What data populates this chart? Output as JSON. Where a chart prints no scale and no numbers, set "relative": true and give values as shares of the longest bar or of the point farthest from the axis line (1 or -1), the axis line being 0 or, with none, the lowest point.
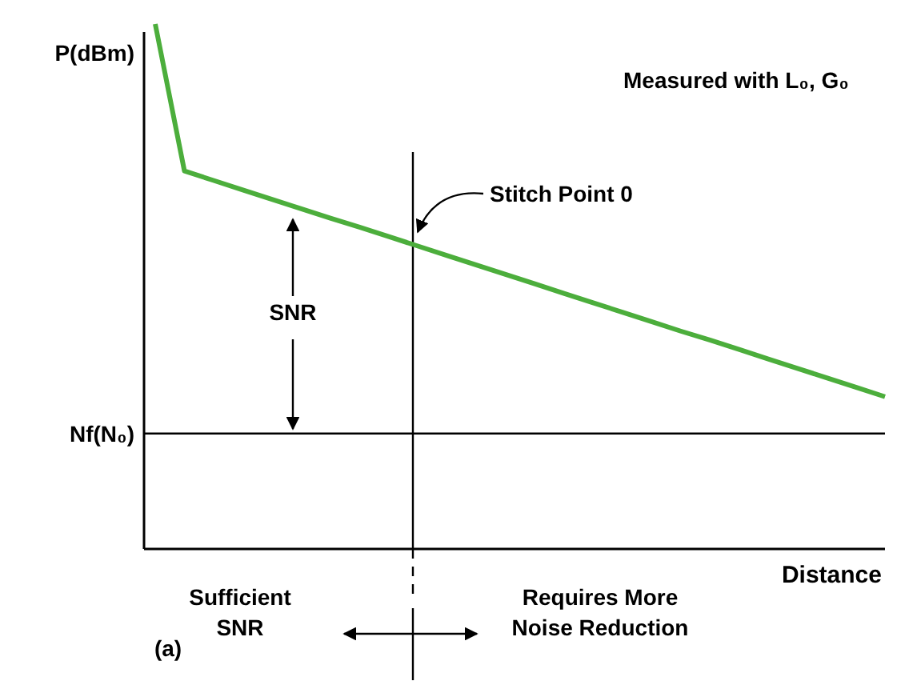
{
  "chart_data": {
    "type": "line",
    "relative": true,
    "xlabel": "Distance",
    "ylabel": "P(dBm)",
    "categories": [
      null,
      null,
      null,
      null,
      null,
      null,
      null,
      null,
      null,
      null,
      null,
      null,
      null,
      null,
      null,
      null,
      null,
      null,
      null,
      null,
      null,
      null,
      null,
      null,
      null,
      null
    ],
    "series": [
      {
        "color": "#4cae3c",
        "values": [
          1,
          0.72,
          0.702,
          0.684,
          0.666,
          0.648,
          0.63,
          0.613,
          0.595,
          0.577,
          0.559,
          0.541,
          0.523,
          0.505,
          0.487,
          0.469,
          0.451,
          0.433,
          0.415,
          0.398,
          0.38,
          0.362,
          0.344,
          0.326,
          0.308,
          0.29
        ]
      }
    ],
    "ref_lines": [
      {
        "axis": "y",
        "value": 0.22,
        "label": "Nf(N₀)",
        "color": "#000000"
      }
    ],
    "annotations": [
      "Measured with L₀, G₀",
      "SNR",
      "Sufficient SNR",
      "Requires More Noise Reduction",
      "(a)",
      "Stitch Point 0"
    ]
  }
}
